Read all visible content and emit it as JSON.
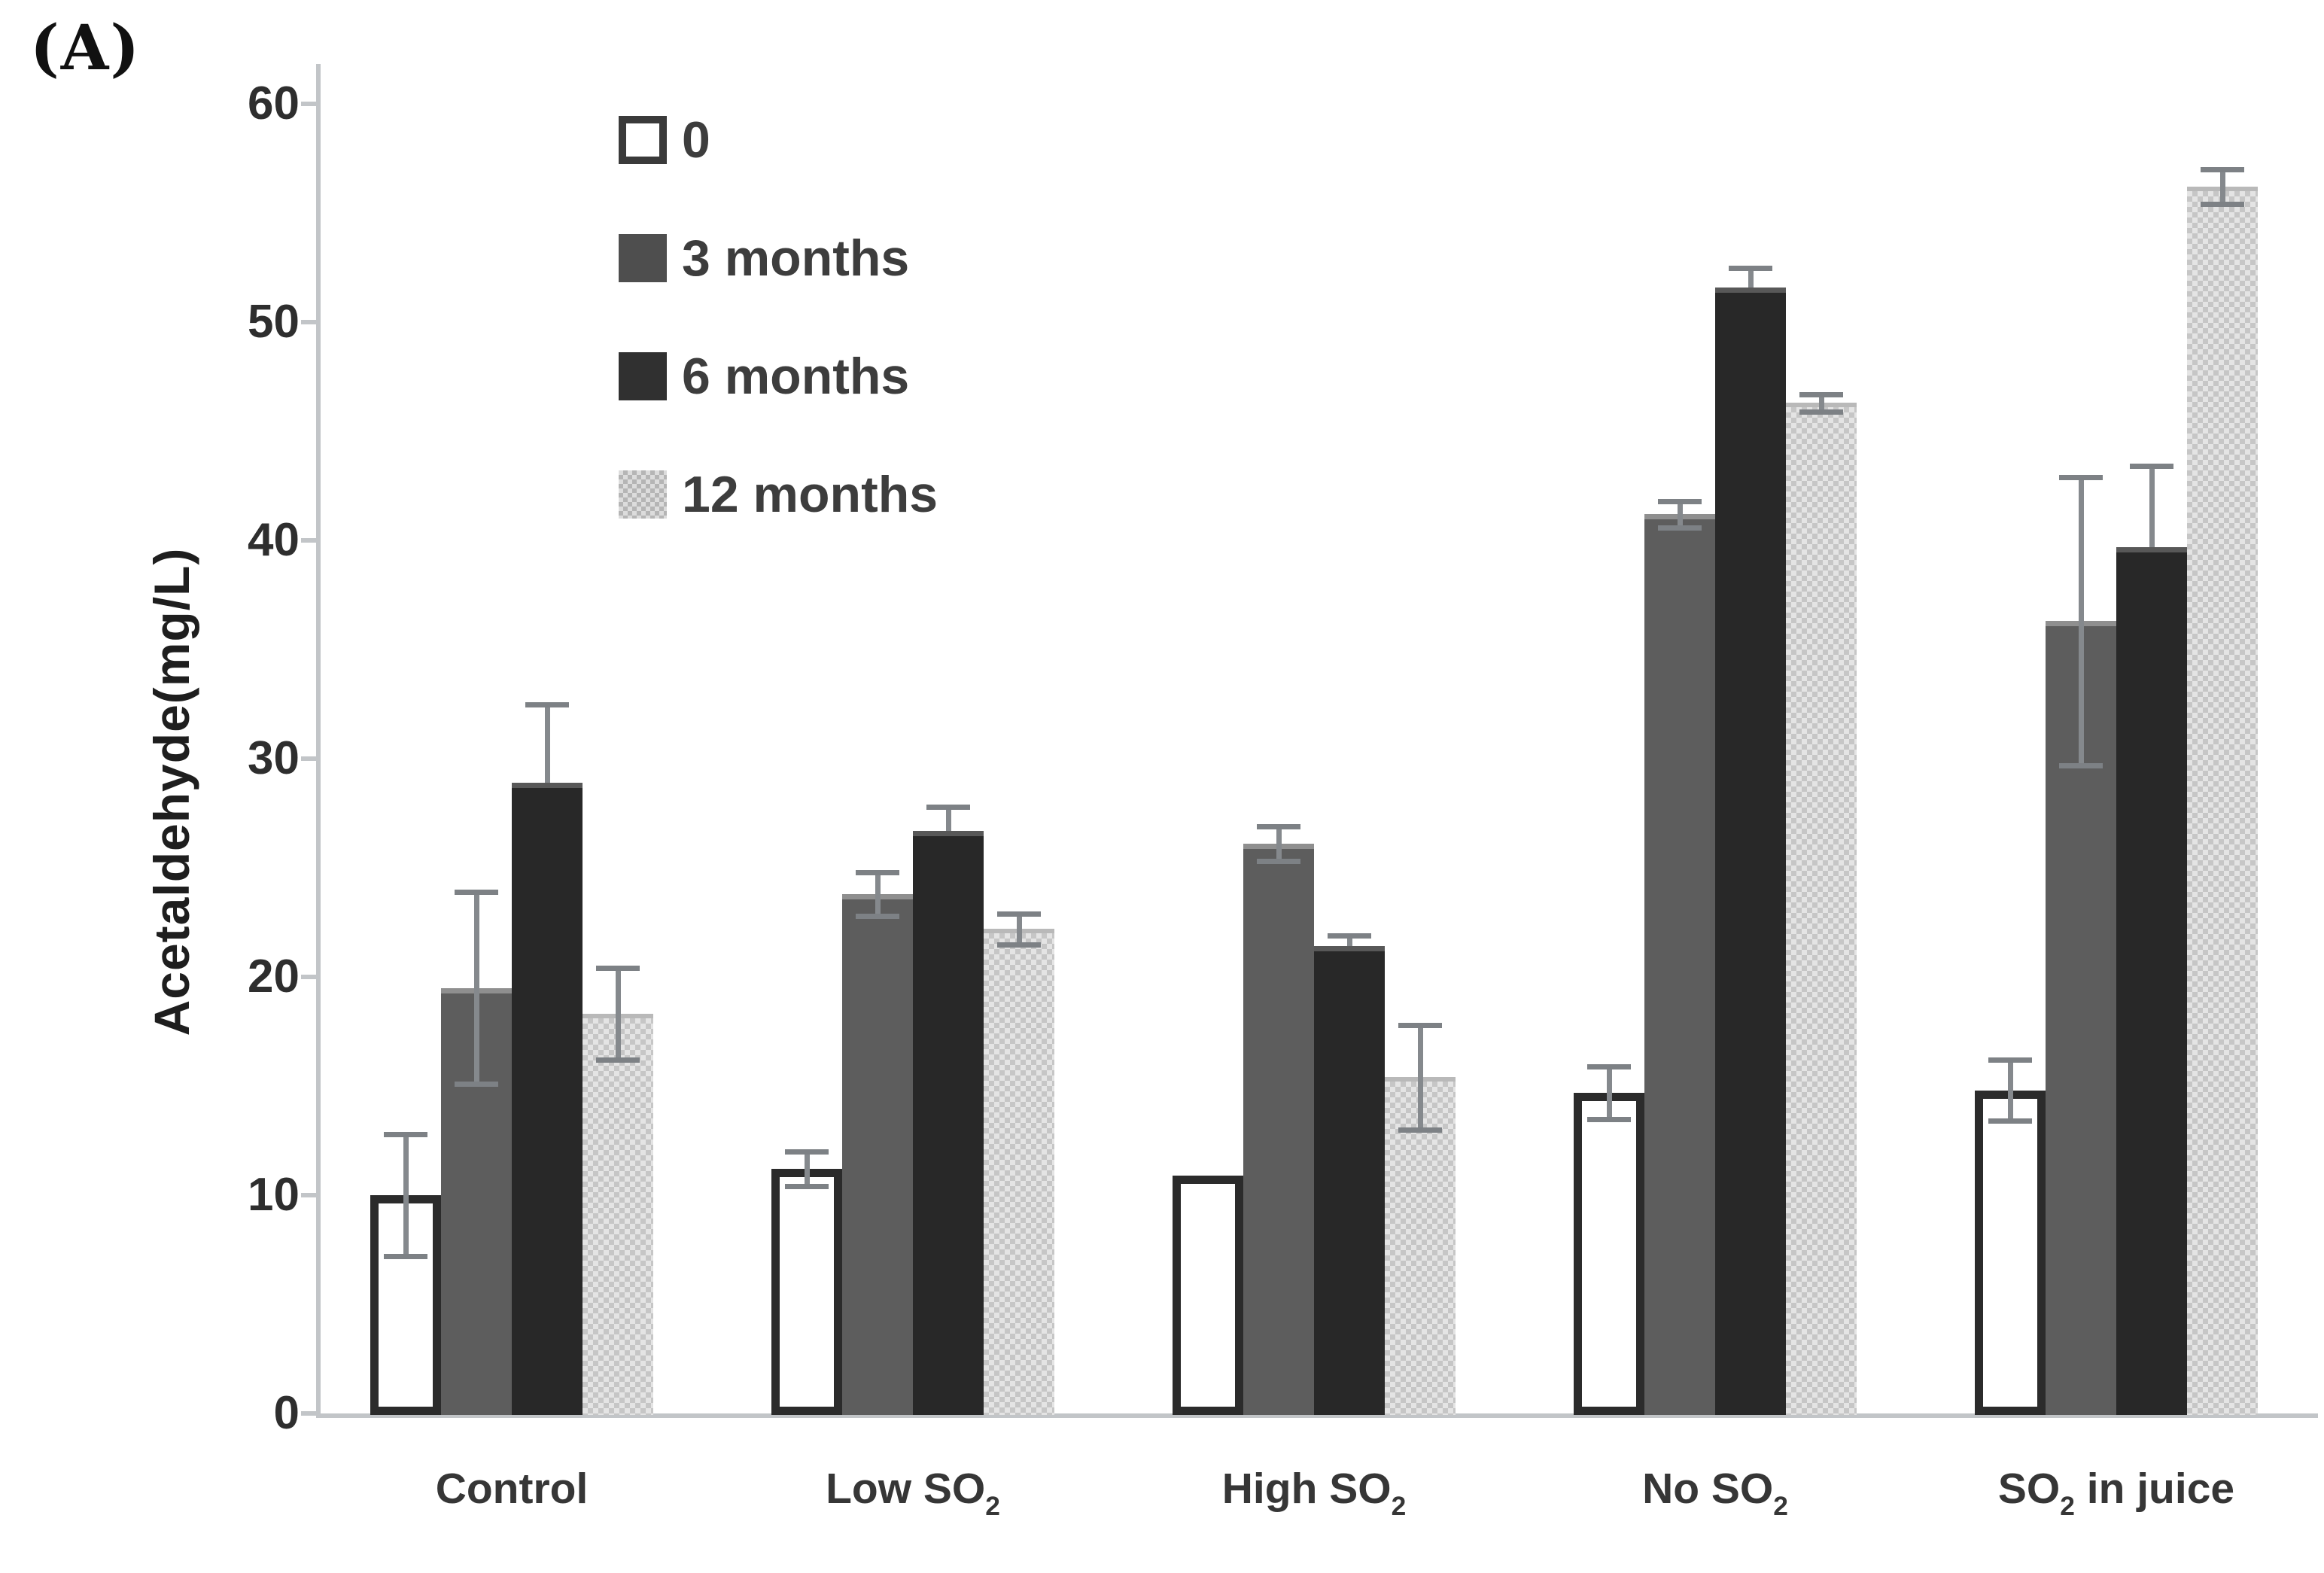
{
  "panel_label": "(A)",
  "y_axis": {
    "title": "Acetaldehyde(mg/L)"
  },
  "legend": [
    {
      "label": "0",
      "swatch": "open"
    },
    {
      "label": "3 months",
      "swatch": "gray"
    },
    {
      "label": "6 months",
      "swatch": "black"
    },
    {
      "label": "12 months",
      "swatch": "pattern"
    }
  ],
  "colors": {
    "bar_gray": "#5d5d5d",
    "bar_black": "#282828",
    "bar_open_fill": "#ffffff",
    "bar_open_border": "#2b2b2b",
    "pattern_base": "#e4e4e4",
    "pattern_dot": "#c6c6c6",
    "axis": "#c2c5c8",
    "error_bar": "#85898d",
    "text": "#2e2e2e"
  },
  "chart_data": {
    "type": "bar",
    "title": "",
    "xlabel": "",
    "ylabel": "Acetaldehyde(mg/L)",
    "ylim": [
      0,
      60
    ],
    "yticks": [
      0,
      10,
      20,
      30,
      40,
      50,
      60
    ],
    "grid": false,
    "legend_position": "upper-left-inside",
    "category_names": [
      "Control",
      "Low SO2",
      "High SO2",
      "No SO2",
      "SO2 in juice"
    ],
    "categories": [
      {
        "name": "Control",
        "segments": [
          {
            "t": "Control"
          }
        ]
      },
      {
        "name": "Low SO2",
        "segments": [
          {
            "t": "Low SO"
          },
          {
            "t": "2",
            "sub": true
          }
        ]
      },
      {
        "name": "High SO2",
        "segments": [
          {
            "t": "High SO"
          },
          {
            "t": "2",
            "sub": true
          }
        ]
      },
      {
        "name": "No SO2",
        "segments": [
          {
            "t": "No SO"
          },
          {
            "t": "2",
            "sub": true
          }
        ]
      },
      {
        "name": "SO2 in juice",
        "segments": [
          {
            "t": "SO"
          },
          {
            "t": "2",
            "sub": true
          },
          {
            "t": " in juice"
          }
        ]
      }
    ],
    "series": [
      {
        "name": "0",
        "style": "open",
        "error_style": "both",
        "values": [
          10.0,
          11.2,
          10.9,
          14.7,
          14.8
        ],
        "errors": [
          2.8,
          0.8,
          0,
          1.2,
          1.4
        ]
      },
      {
        "name": "3 months",
        "style": "gray",
        "error_style": "both",
        "values": [
          19.5,
          23.8,
          26.1,
          41.2,
          36.3
        ],
        "errors": [
          4.4,
          1.0,
          0.8,
          0.6,
          6.6
        ]
      },
      {
        "name": "6 months",
        "style": "black",
        "error_style": "upper",
        "values": [
          28.9,
          26.7,
          21.4,
          51.6,
          39.7
        ],
        "errors": [
          3.6,
          1.1,
          0.5,
          0.9,
          3.7
        ]
      },
      {
        "name": "12 months",
        "style": "pattern",
        "error_style": "both",
        "values": [
          18.3,
          22.2,
          15.4,
          46.3,
          56.2
        ],
        "errors": [
          2.1,
          0.7,
          2.4,
          0.4,
          0.8
        ]
      }
    ]
  }
}
